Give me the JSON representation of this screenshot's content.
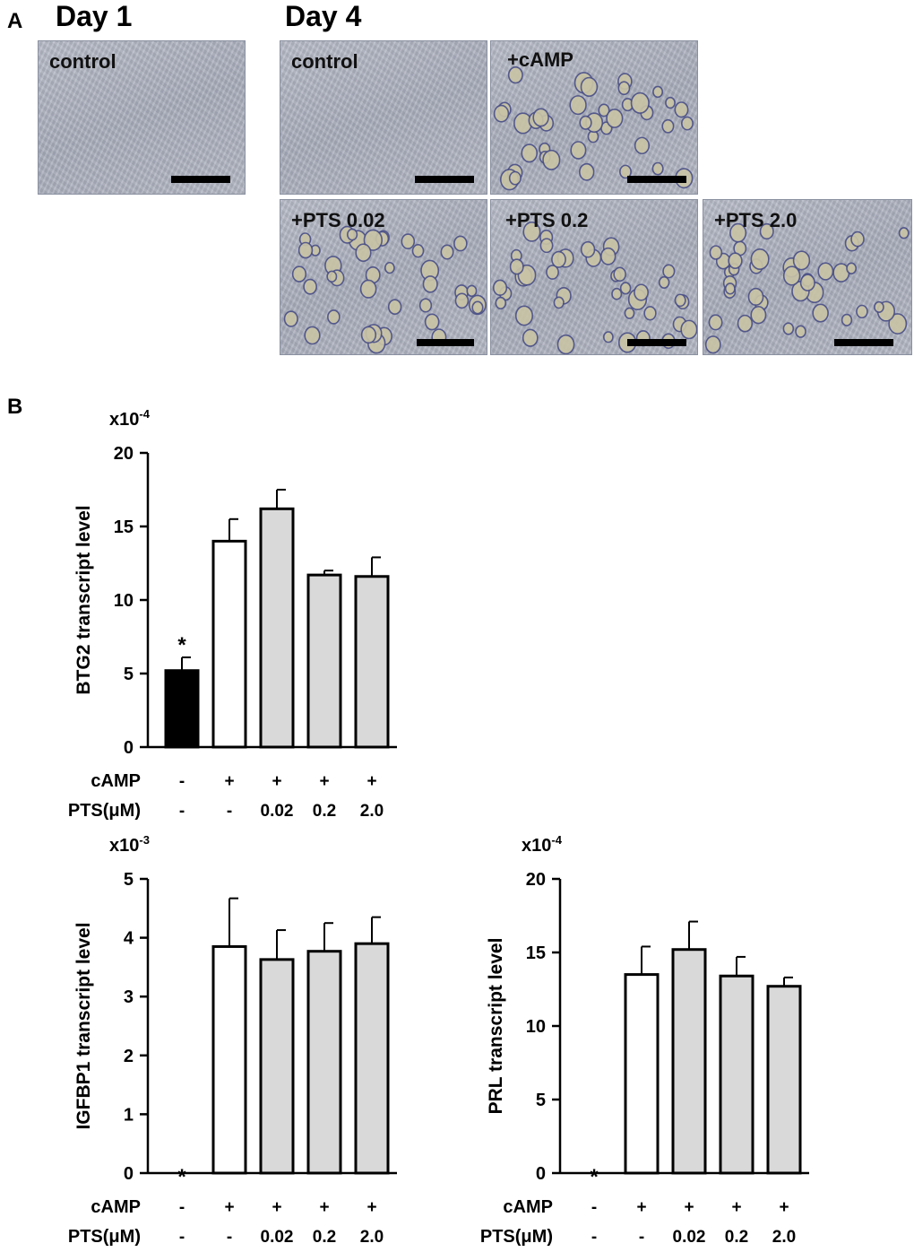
{
  "panel_a": {
    "letter": "A",
    "day1_title": "Day 1",
    "day4_title": "Day 4",
    "images": [
      {
        "label": "control"
      },
      {
        "label": "control"
      },
      {
        "label": "+cAMP"
      },
      {
        "label": "+PTS 0.02"
      },
      {
        "label": "+PTS 0.2"
      },
      {
        "label": "+PTS 2.0"
      }
    ]
  },
  "panel_b": {
    "letter": "B"
  },
  "chart_data": [
    {
      "type": "bar",
      "ylabel": "BTG2 transcript level",
      "multiplier": "x10",
      "multiplier_exp": "-4",
      "ylim": [
        0,
        20
      ],
      "yticks": [
        "0",
        "5",
        "10",
        "15",
        "20"
      ],
      "values": [
        5.2,
        14.0,
        16.2,
        11.7,
        11.6
      ],
      "errors": [
        0.9,
        1.5,
        1.3,
        0.3,
        1.3
      ],
      "fills": [
        "#000000",
        "#ffffff",
        "#d9d9d9",
        "#d9d9d9",
        "#d9d9d9"
      ],
      "annotation": "*",
      "row_labels": [
        "cAMP",
        "PTS(μM)"
      ],
      "camp": [
        "-",
        "+",
        "+",
        "+",
        "+"
      ],
      "pts": [
        "-",
        "-",
        "0.02",
        "0.2",
        "2.0"
      ]
    },
    {
      "type": "bar",
      "ylabel": "IGFBP1 transcript level",
      "multiplier": "x10",
      "multiplier_exp": "-3",
      "ylim": [
        0,
        5
      ],
      "yticks": [
        "0",
        "1",
        "2",
        "3",
        "4",
        "5"
      ],
      "values": [
        0,
        3.85,
        3.63,
        3.77,
        3.9
      ],
      "errors": [
        0,
        0.82,
        0.5,
        0.48,
        0.45
      ],
      "fills": [
        "#000000",
        "#ffffff",
        "#d9d9d9",
        "#d9d9d9",
        "#d9d9d9"
      ],
      "annotation": "*",
      "row_labels": [
        "cAMP",
        "PTS(μM)"
      ],
      "camp": [
        "-",
        "+",
        "+",
        "+",
        "+"
      ],
      "pts": [
        "-",
        "-",
        "0.02",
        "0.2",
        "2.0"
      ]
    },
    {
      "type": "bar",
      "ylabel": "PRL transcript level",
      "multiplier": "x10",
      "multiplier_exp": "-4",
      "ylim": [
        0,
        20
      ],
      "yticks": [
        "0",
        "5",
        "10",
        "15",
        "20"
      ],
      "values": [
        0,
        13.5,
        15.2,
        13.4,
        12.7
      ],
      "errors": [
        0,
        1.9,
        1.9,
        1.3,
        0.6
      ],
      "fills": [
        "#000000",
        "#ffffff",
        "#d9d9d9",
        "#d9d9d9",
        "#d9d9d9"
      ],
      "annotation": "*",
      "row_labels": [
        "cAMP",
        "PTS(μM)"
      ],
      "camp": [
        "-",
        "+",
        "+",
        "+",
        "+"
      ],
      "pts": [
        "-",
        "-",
        "0.02",
        "0.2",
        "2.0"
      ]
    }
  ]
}
